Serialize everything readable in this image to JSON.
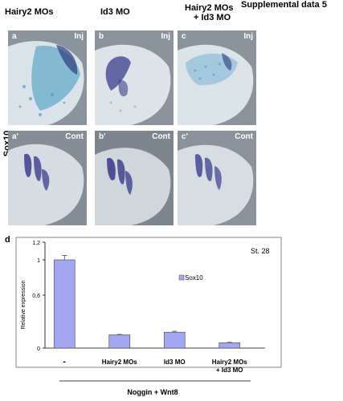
{
  "header": {
    "supplemental": "Supplemental data 5"
  },
  "columns": [
    {
      "title": "Hairy2 MOs"
    },
    {
      "title": "Id3 MO"
    },
    {
      "title_line1": "Hairy2 MOs",
      "title_line2": "+ Id3 MO"
    }
  ],
  "row_label": "Sox10",
  "panels": [
    {
      "letter": "a",
      "tag": "Inj"
    },
    {
      "letter": "b",
      "tag": "Inj"
    },
    {
      "letter": "c",
      "tag": "Inj"
    },
    {
      "letter": "a'",
      "tag": "Cont"
    },
    {
      "letter": "b'",
      "tag": "Cont"
    },
    {
      "letter": "c'",
      "tag": "Cont"
    }
  ],
  "chart_data": {
    "type": "bar",
    "panel_letter": "d",
    "stage": "St. 28",
    "ylabel": "Relative expression",
    "yticks": [
      "0",
      "0,6",
      "1",
      "1,2"
    ],
    "ylim": [
      0,
      1.2
    ],
    "categories": [
      "-",
      "Hairy2 MOs",
      "Id3 MO",
      "Hairy2 MOs\n+ Id3 MO"
    ],
    "category_lines": [
      [
        "-"
      ],
      [
        "Hairy2 MOs"
      ],
      [
        "Id3 MO"
      ],
      [
        "Hairy2 MOs",
        "+ Id3 MO"
      ]
    ],
    "series": [
      {
        "name": "Sox10",
        "values": [
          1.0,
          0.15,
          0.18,
          0.06
        ],
        "errors": [
          0.05,
          0.005,
          0.01,
          0.005
        ],
        "color": "#a3a6f0"
      }
    ],
    "group_label": "Noggin + Wnt8"
  }
}
